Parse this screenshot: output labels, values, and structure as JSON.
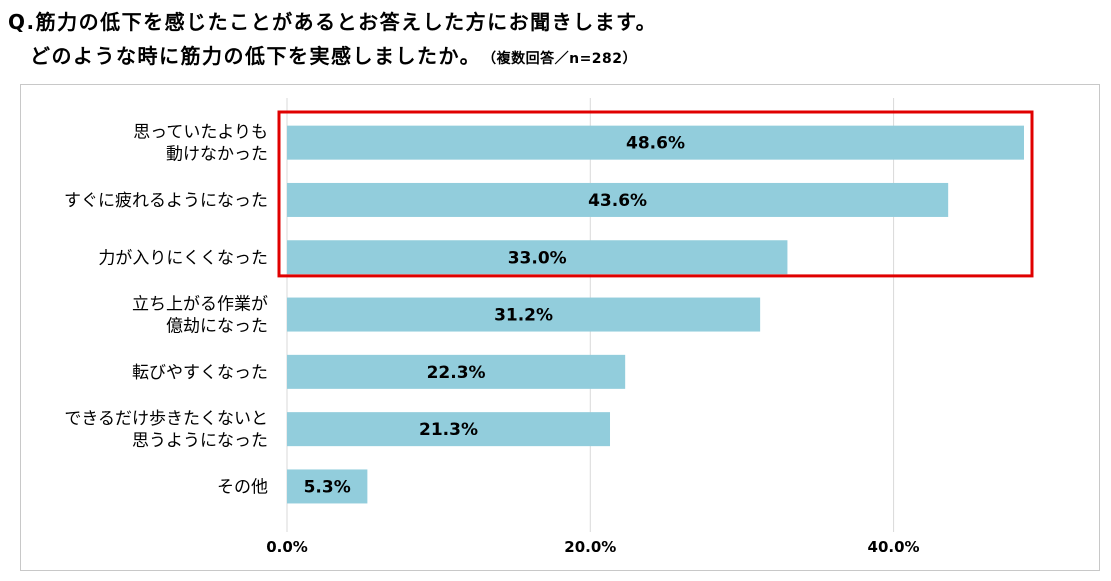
{
  "title": {
    "line1": "Q.筋力の低下を感じたことがあるとお答えした方にお聞きします。",
    "line2": "どのような時に筋力の低下を実感しましたか。",
    "note": "（複数回答／n=282）"
  },
  "chart_data": {
    "type": "bar",
    "orientation": "horizontal",
    "categories": [
      [
        "思っていたよりも",
        "動けなかった"
      ],
      [
        "すぐに疲れるようになった"
      ],
      [
        "力が入りにくくなった"
      ],
      [
        "立ち上がる作業が",
        "億劫になった"
      ],
      [
        "転びやすくなった"
      ],
      [
        "できるだけ歩きたくないと",
        "思うようになった"
      ],
      [
        "その他"
      ]
    ],
    "values": [
      48.6,
      43.6,
      33.0,
      31.2,
      22.3,
      21.3,
      5.3
    ],
    "value_labels": [
      "48.6%",
      "43.6%",
      "33.0%",
      "31.2%",
      "22.3%",
      "21.3%",
      "5.3%"
    ],
    "xticks": [
      "0.0%",
      "20.0%",
      "40.0%"
    ],
    "xtick_values": [
      0,
      20,
      40
    ],
    "xlim": [
      0,
      48.6
    ],
    "grid": true,
    "bar_color": "#92cddc",
    "highlight_color": "#e00000",
    "highlighted_categories": [
      0,
      1,
      2
    ]
  }
}
